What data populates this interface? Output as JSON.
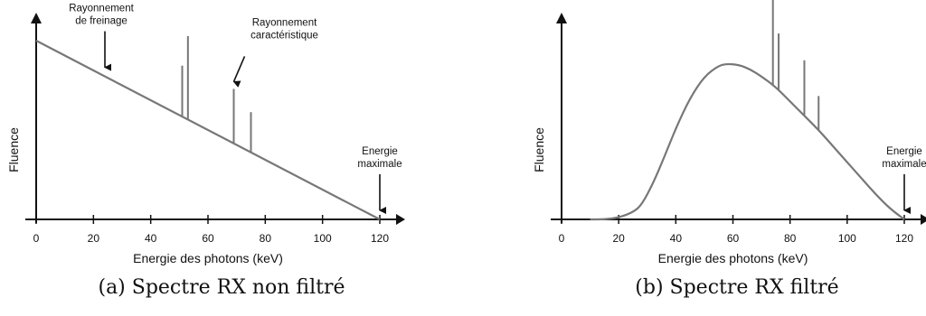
{
  "chart_data": [
    {
      "type": "line",
      "caption": "(a) Spectre RX non filtré",
      "xlabel": "Energie des photons (keV)",
      "ylabel": "Fluence",
      "xlim": [
        0,
        125
      ],
      "ylim": [
        0,
        100
      ],
      "xticks": [
        0,
        20,
        40,
        60,
        80,
        100,
        120
      ],
      "grid": false,
      "series": [
        {
          "role": "continuum",
          "x": [
            0,
            120
          ],
          "y": [
            100,
            0
          ]
        }
      ],
      "peaks": [
        {
          "x": 51,
          "y_base": 57.5,
          "y_top": 86
        },
        {
          "x": 53,
          "y_base": 56,
          "y_top": 102.5
        },
        {
          "x": 69,
          "y_base": 42.5,
          "y_top": 73
        },
        {
          "x": 75,
          "y_base": 37.5,
          "y_top": 60
        }
      ],
      "annotations": [
        {
          "lines": [
            "Rayonnement",
            "de freinage"
          ],
          "x": 24,
          "y": 80
        },
        {
          "lines": [
            "Rayonnement",
            "caractéristique"
          ],
          "x": 69,
          "y": 72
        },
        {
          "lines": [
            "Energie",
            "maximale"
          ],
          "x": 120,
          "y": 0
        }
      ]
    },
    {
      "type": "line",
      "caption": "(b) Spectre RX filtré",
      "xlabel": "Energie des photons (keV)",
      "ylabel": "Fluence",
      "xlim": [
        0,
        125
      ],
      "ylim": [
        0,
        100
      ],
      "xticks": [
        0,
        20,
        40,
        60,
        80,
        100,
        120
      ],
      "grid": false,
      "series": [
        {
          "role": "filtered-continuum",
          "x": [
            10,
            15,
            20,
            25,
            28,
            32,
            36,
            40,
            45,
            50,
            55,
            58,
            62,
            66,
            70,
            75,
            80,
            85,
            90,
            95,
            100,
            105,
            110,
            115,
            120
          ],
          "y": [
            0,
            0,
            1,
            4,
            8,
            20,
            35,
            51,
            68,
            80,
            86,
            87,
            86.5,
            84,
            80,
            74,
            66,
            58,
            50,
            41,
            32,
            23,
            14,
            6,
            0
          ]
        }
      ],
      "peaks": [
        {
          "x": 74,
          "y_base": 75,
          "y_top": 126
        },
        {
          "x": 76,
          "y_base": 72,
          "y_top": 104
        },
        {
          "x": 85,
          "y_base": 58,
          "y_top": 89
        },
        {
          "x": 90,
          "y_base": 50,
          "y_top": 69
        }
      ],
      "annotations": [
        {
          "lines": [
            "Energie",
            "maximale"
          ],
          "x": 120,
          "y": 0
        }
      ]
    }
  ]
}
